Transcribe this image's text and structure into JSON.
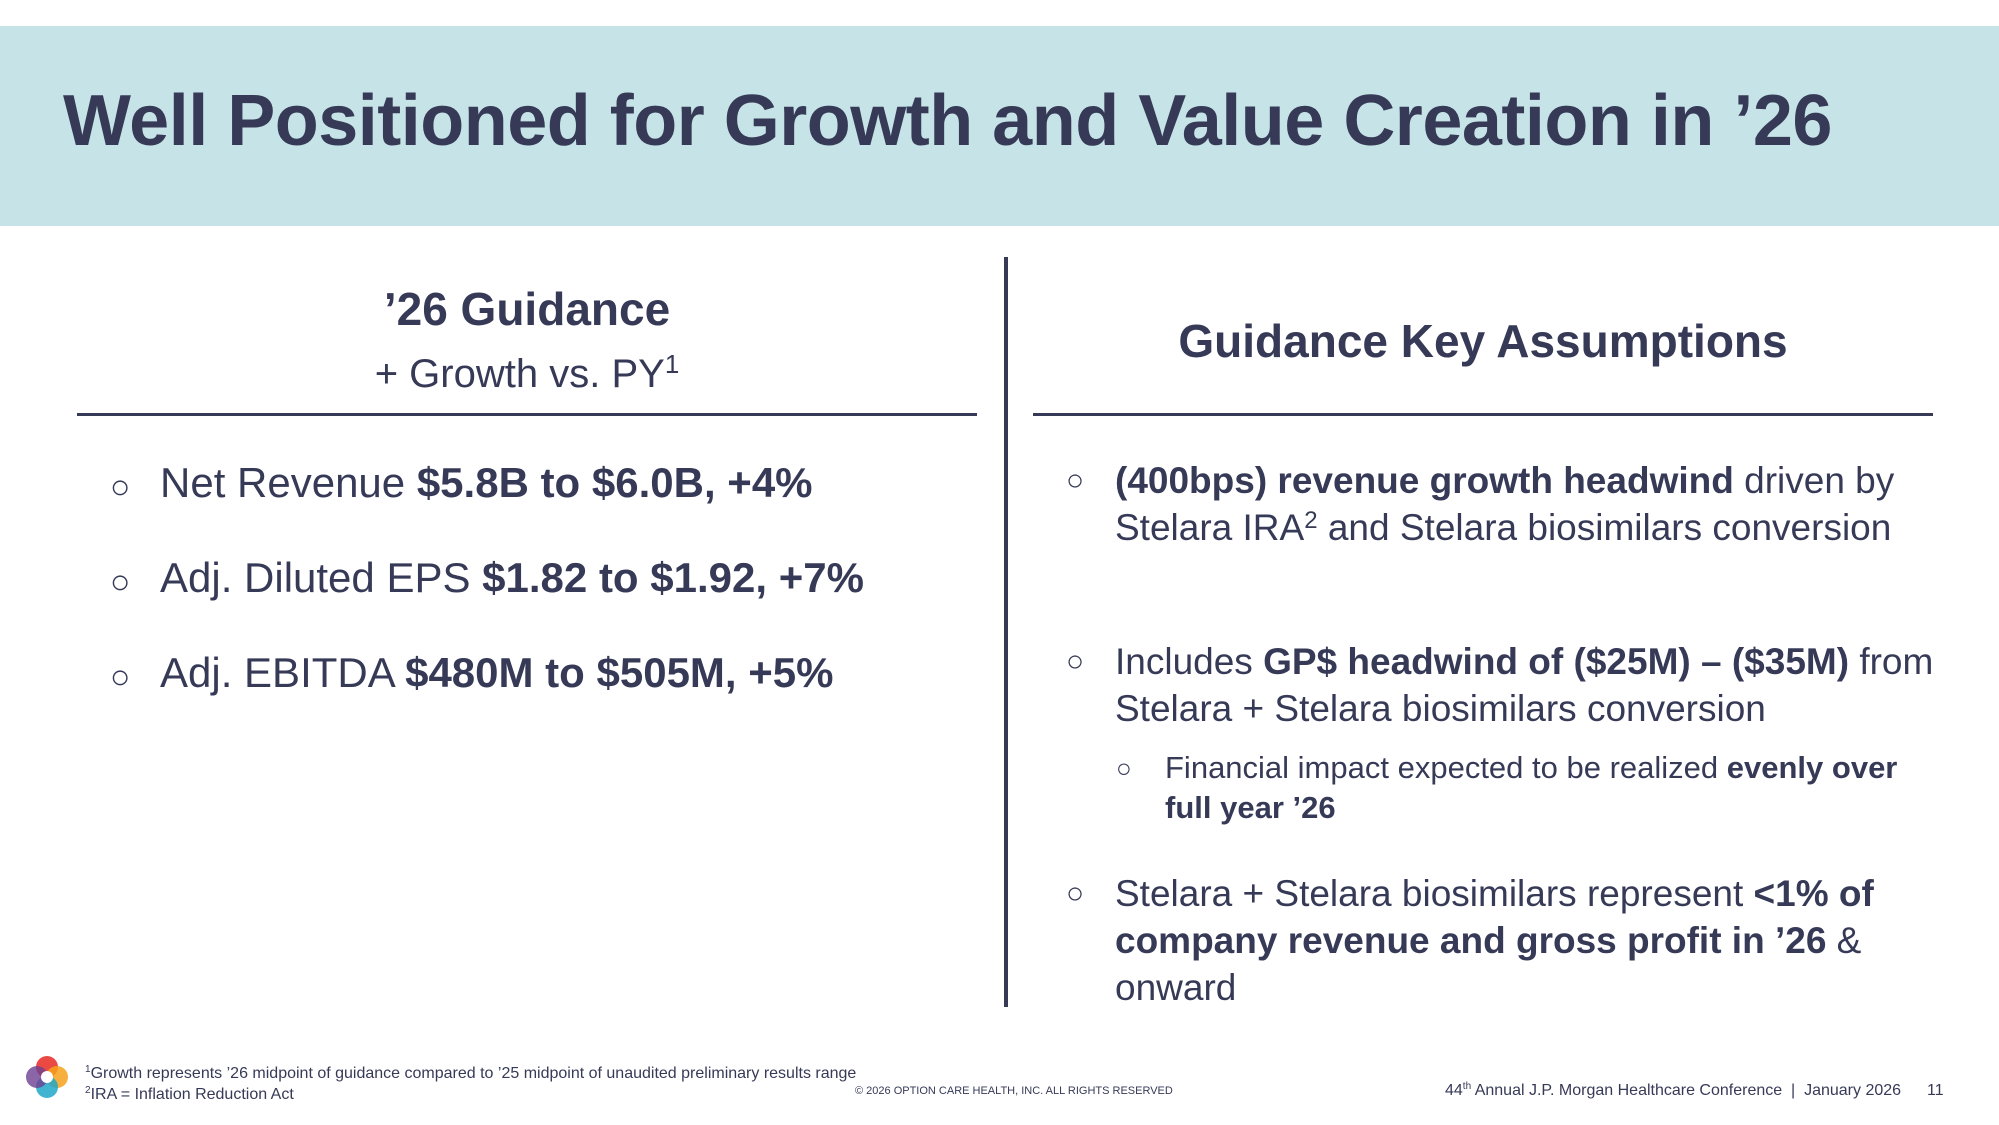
{
  "title": "Well Positioned for Growth and Value Creation in ’26",
  "left": {
    "heading": "’26 Guidance",
    "subheading": "+ Growth vs. PY",
    "subheading_ref": "1",
    "bullets": [
      {
        "label": "Net Revenue ",
        "value": "$5.8B to $6.0B, +4%"
      },
      {
        "label": "Adj. Diluted EPS ",
        "value": "$1.82 to $1.92, +7%"
      },
      {
        "label": "Adj. EBITDA ",
        "value": "$480M to $505M, +5%"
      }
    ]
  },
  "right": {
    "heading": "Guidance Key Assumptions",
    "bullet1": {
      "bold": "(400bps) revenue growth headwind",
      "text1": " driven by Stelara IRA",
      "ref": "2",
      "text2": " and Stelara biosimilars conversion"
    },
    "bullet2": {
      "text1": "Includes ",
      "bold": "GP$ headwind of ($25M) – ($35M)",
      "text2": " from Stelara + Stelara biosimilars conversion"
    },
    "sub_bullet": {
      "text": "Financial impact expected to be realized ",
      "bold": "evenly over full year ’26"
    },
    "bullet3": {
      "text1": "Stelara + Stelara biosimilars represent ",
      "bold": "<1% of company revenue and gross profit in ’26",
      "text2": " & onward"
    },
    "bullet_mark": "○"
  },
  "footer": {
    "footnote1_ref": "1",
    "footnote1": "Growth represents ’26 midpoint of guidance compared to ’25 midpoint of unaudited preliminary results range",
    "footnote2_ref": "2",
    "footnote2": "IRA = Inflation Reduction Act",
    "copyright": "© 2026 OPTION CARE HEALTH, INC. ALL RIGHTS RESERVED",
    "conference_ordinal": "44",
    "conference_suffix": "th",
    "conference_rest": " Annual J.P. Morgan Healthcare Conference  |  January 2026",
    "page_number": "11"
  },
  "icons": {
    "logo": "option-care-health-logo-icon"
  },
  "colors": {
    "banner": "#c6e4e7",
    "text": "#363a57",
    "logo_colors": [
      "#e8362f",
      "#f6a21b",
      "#1fa7c9",
      "#6d3f91"
    ]
  }
}
